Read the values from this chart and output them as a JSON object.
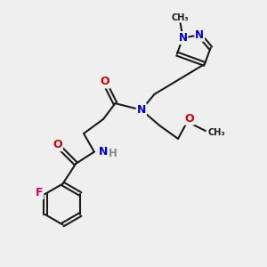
{
  "bg_color": "#efefef",
  "bond_color": "#1a1a1a",
  "atom_colors": {
    "N": "#0000cc",
    "O": "#cc0000",
    "F": "#cc0066",
    "C": "#1a1a1a",
    "H": "#888888"
  },
  "figsize": [
    3.0,
    3.0
  ],
  "dpi": 100,
  "lw": 1.5,
  "fontsize": 8.5
}
